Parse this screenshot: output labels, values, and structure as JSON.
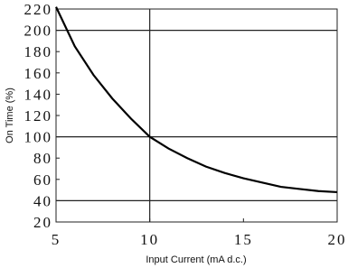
{
  "chart_data": {
    "type": "line",
    "x_label": "Input Current (mA d.c.)",
    "y_label": "On Time (%)",
    "x": [
      5,
      6,
      7,
      8,
      9,
      10,
      11,
      12,
      13,
      14,
      15,
      16,
      17,
      18,
      19,
      20
    ],
    "series": [
      {
        "color": "#000000",
        "values": [
          222,
          185,
          158,
          136,
          117,
          100,
          89,
          80,
          72,
          66,
          61,
          57,
          53,
          51,
          49,
          48
        ]
      }
    ],
    "xlim": [
      5,
      20
    ],
    "xticks": [
      5,
      10,
      15,
      20
    ],
    "ylim": [
      20,
      220
    ],
    "yticks": [
      20,
      40,
      60,
      80,
      100,
      120,
      140,
      160,
      180,
      200,
      220
    ],
    "xgrid": [
      10
    ],
    "ygrid": [
      40,
      100,
      200
    ]
  }
}
